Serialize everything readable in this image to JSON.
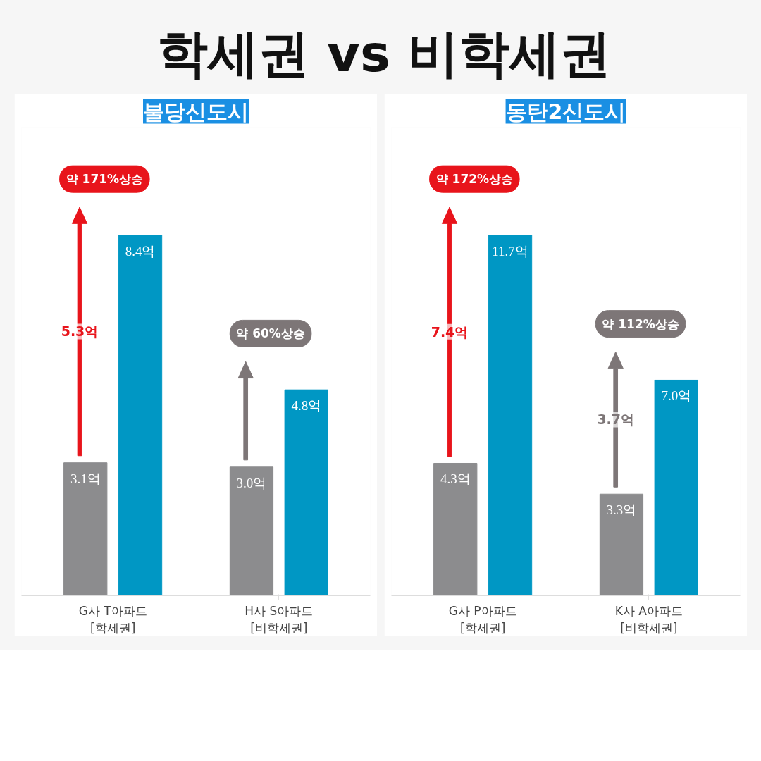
{
  "chart_data": [
    {
      "type": "bar",
      "title": "학세권 vs 비학세권",
      "subtitle": "불당신도시",
      "categories": [
        "G사 T아파트\n[학세권]",
        "H사 S아파트\n[비학세권]"
      ],
      "series": [
        {
          "color": "#8c8c8e",
          "values": [
            3.1,
            3.0
          ],
          "value_labels": [
            "3.1억",
            "3.0억"
          ]
        },
        {
          "color": "#0097c4",
          "values": [
            8.4,
            4.8
          ],
          "value_labels": [
            "8.4억",
            "4.8억"
          ]
        }
      ],
      "annotations": [
        "약 171%상승",
        "5.3억",
        "약 60%상승"
      ],
      "grid": false
    },
    {
      "type": "bar",
      "subtitle": "동탄2신도시",
      "categories": [
        "G사 P아파트\n[학세권]",
        "K사 A아파트\n[비학세권]"
      ],
      "series": [
        {
          "color": "#8c8c8e",
          "values": [
            4.3,
            3.3
          ],
          "value_labels": [
            "4.3억",
            "3.3억"
          ]
        },
        {
          "color": "#0097c4",
          "values": [
            11.7,
            7.0
          ],
          "value_labels": [
            "11.7억",
            "7.0억"
          ]
        }
      ],
      "annotations": [
        "약 172%상승",
        "7.4억",
        "약 112%상승",
        "3.7억"
      ],
      "grid": false
    }
  ]
}
